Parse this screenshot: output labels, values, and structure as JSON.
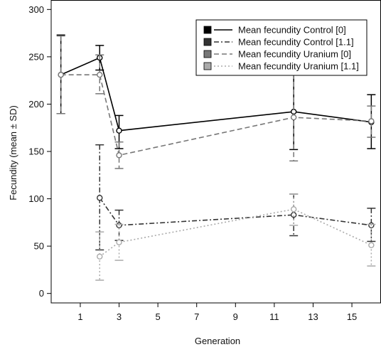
{
  "chart_data": {
    "type": "line",
    "title": "",
    "xlabel": "Generation",
    "ylabel": "Fecundity (mean ± SD)",
    "xlim": [
      -0.5,
      16.5
    ],
    "ylim": [
      -10,
      310
    ],
    "x_ticks": [
      1,
      3,
      5,
      7,
      9,
      11,
      13,
      15
    ],
    "y_ticks": [
      0,
      50,
      100,
      150,
      200,
      250,
      300
    ],
    "grid": false,
    "legend_position": "top-right",
    "series": [
      {
        "name": "Mean fecundity Control [0]",
        "color": "#000000",
        "dash": "solid",
        "x": [
          0,
          2,
          3,
          12,
          16
        ],
        "y": [
          231,
          249,
          172,
          192,
          181
        ],
        "sd_low": [
          190,
          236,
          153,
          152,
          153
        ],
        "sd_high": [
          273,
          262,
          188,
          232,
          210
        ]
      },
      {
        "name": "Mean fecundity Control [1.1]",
        "color": "#333333",
        "dash": "dashdot",
        "x": [
          2,
          3,
          12,
          16
        ],
        "y": [
          101,
          72,
          83,
          72
        ],
        "sd_low": [
          46,
          56,
          61,
          55
        ],
        "sd_high": [
          157,
          88,
          105,
          90
        ]
      },
      {
        "name": "Mean fecundity Uranium [0]",
        "color": "#777777",
        "dash": "dashed",
        "x": [
          0,
          2,
          3,
          12,
          16
        ],
        "y": [
          231,
          231,
          146,
          186,
          182
        ],
        "sd_low": [
          190,
          211,
          132,
          140,
          165
        ],
        "sd_high": [
          272,
          252,
          160,
          232,
          198
        ]
      },
      {
        "name": "Mean fecundity Uranium [1.1]",
        "color": "#aaaaaa",
        "dash": "dotted",
        "x": [
          2,
          3,
          12,
          16
        ],
        "y": [
          39,
          54,
          89,
          51
        ],
        "sd_low": [
          14,
          35,
          72,
          29
        ],
        "sd_high": [
          65,
          73,
          105,
          73
        ]
      }
    ]
  }
}
